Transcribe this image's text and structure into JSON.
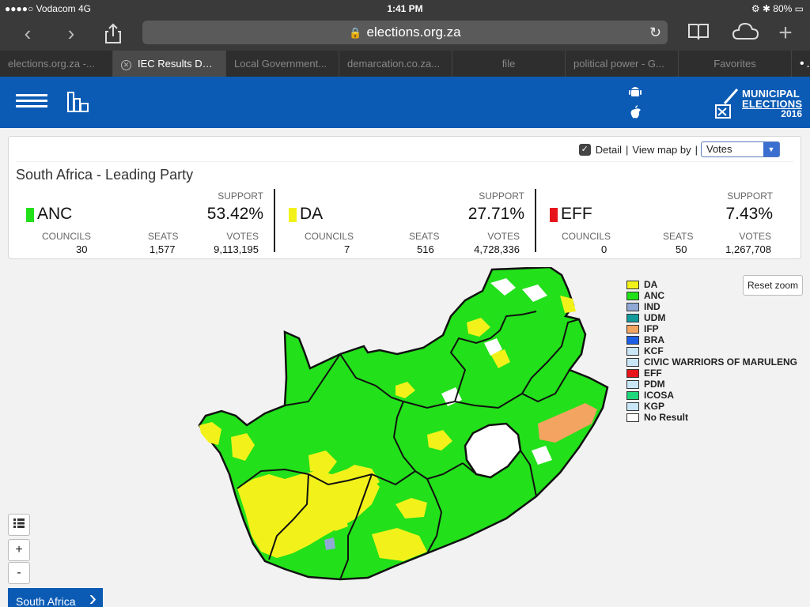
{
  "status": {
    "carrier": "●●●●○ Vodacom  4G",
    "time": "1:41 PM",
    "battery": "80%"
  },
  "browser": {
    "url": "elections.org.za",
    "tabs": [
      {
        "label": "elections.org.za -..."
      },
      {
        "label": "IEC Results Das..."
      },
      {
        "label": "Local Government..."
      },
      {
        "label": "demarcation.co.za..."
      },
      {
        "label": "file"
      },
      {
        "label": "political power - G..."
      },
      {
        "label": "Favorites"
      }
    ],
    "more_label": "•••"
  },
  "logo": {
    "line1": "MUNICIPAL",
    "line2": "ELECTIONS",
    "year": "2016"
  },
  "controls": {
    "detail_label": "Detail",
    "separator": "|",
    "view_map_label": "View map by",
    "separator2": "|",
    "select_value": "Votes"
  },
  "summary": {
    "title": "South Africa - Leading Party",
    "support_label": "SUPPORT",
    "councils_label": "COUNCILS",
    "seats_label": "SEATS",
    "votes_label": "VOTES",
    "parties": [
      {
        "name": "ANC",
        "support": "53.42%",
        "councils": "30",
        "seats": "1,577",
        "votes": "9,113,195",
        "color": "#22e01a"
      },
      {
        "name": "DA",
        "support": "27.71%",
        "councils": "7",
        "seats": "516",
        "votes": "4,728,336",
        "color": "#f2f21a"
      },
      {
        "name": "EFF",
        "support": "7.43%",
        "councils": "0",
        "seats": "50",
        "votes": "1,267,708",
        "color": "#e8141c"
      }
    ]
  },
  "legend": [
    {
      "label": "DA",
      "color": "#f2f21a"
    },
    {
      "label": "ANC",
      "color": "#22e01a"
    },
    {
      "label": "IND",
      "color": "#8fa8d4"
    },
    {
      "label": "UDM",
      "color": "#139a9a"
    },
    {
      "label": "IFP",
      "color": "#f2a460"
    },
    {
      "label": "BRA",
      "color": "#1c5fe6"
    },
    {
      "label": "KCF",
      "color": "#c9e6f7"
    },
    {
      "label": "CIVIC WARRIORS OF MARULENG",
      "color": "#c9e6f7"
    },
    {
      "label": "EFF",
      "color": "#e8141c"
    },
    {
      "label": "PDM",
      "color": "#c9e6f7"
    },
    {
      "label": "ICOSA",
      "color": "#1fd67a"
    },
    {
      "label": "KGP",
      "color": "#c9e6f7"
    },
    {
      "label": "No Result",
      "color": "#ffffff"
    }
  ],
  "map_controls": {
    "reset_label": "Reset zoom",
    "zoom_in": "+",
    "zoom_out": "-"
  },
  "breadcrumb": {
    "label": "South Africa"
  }
}
